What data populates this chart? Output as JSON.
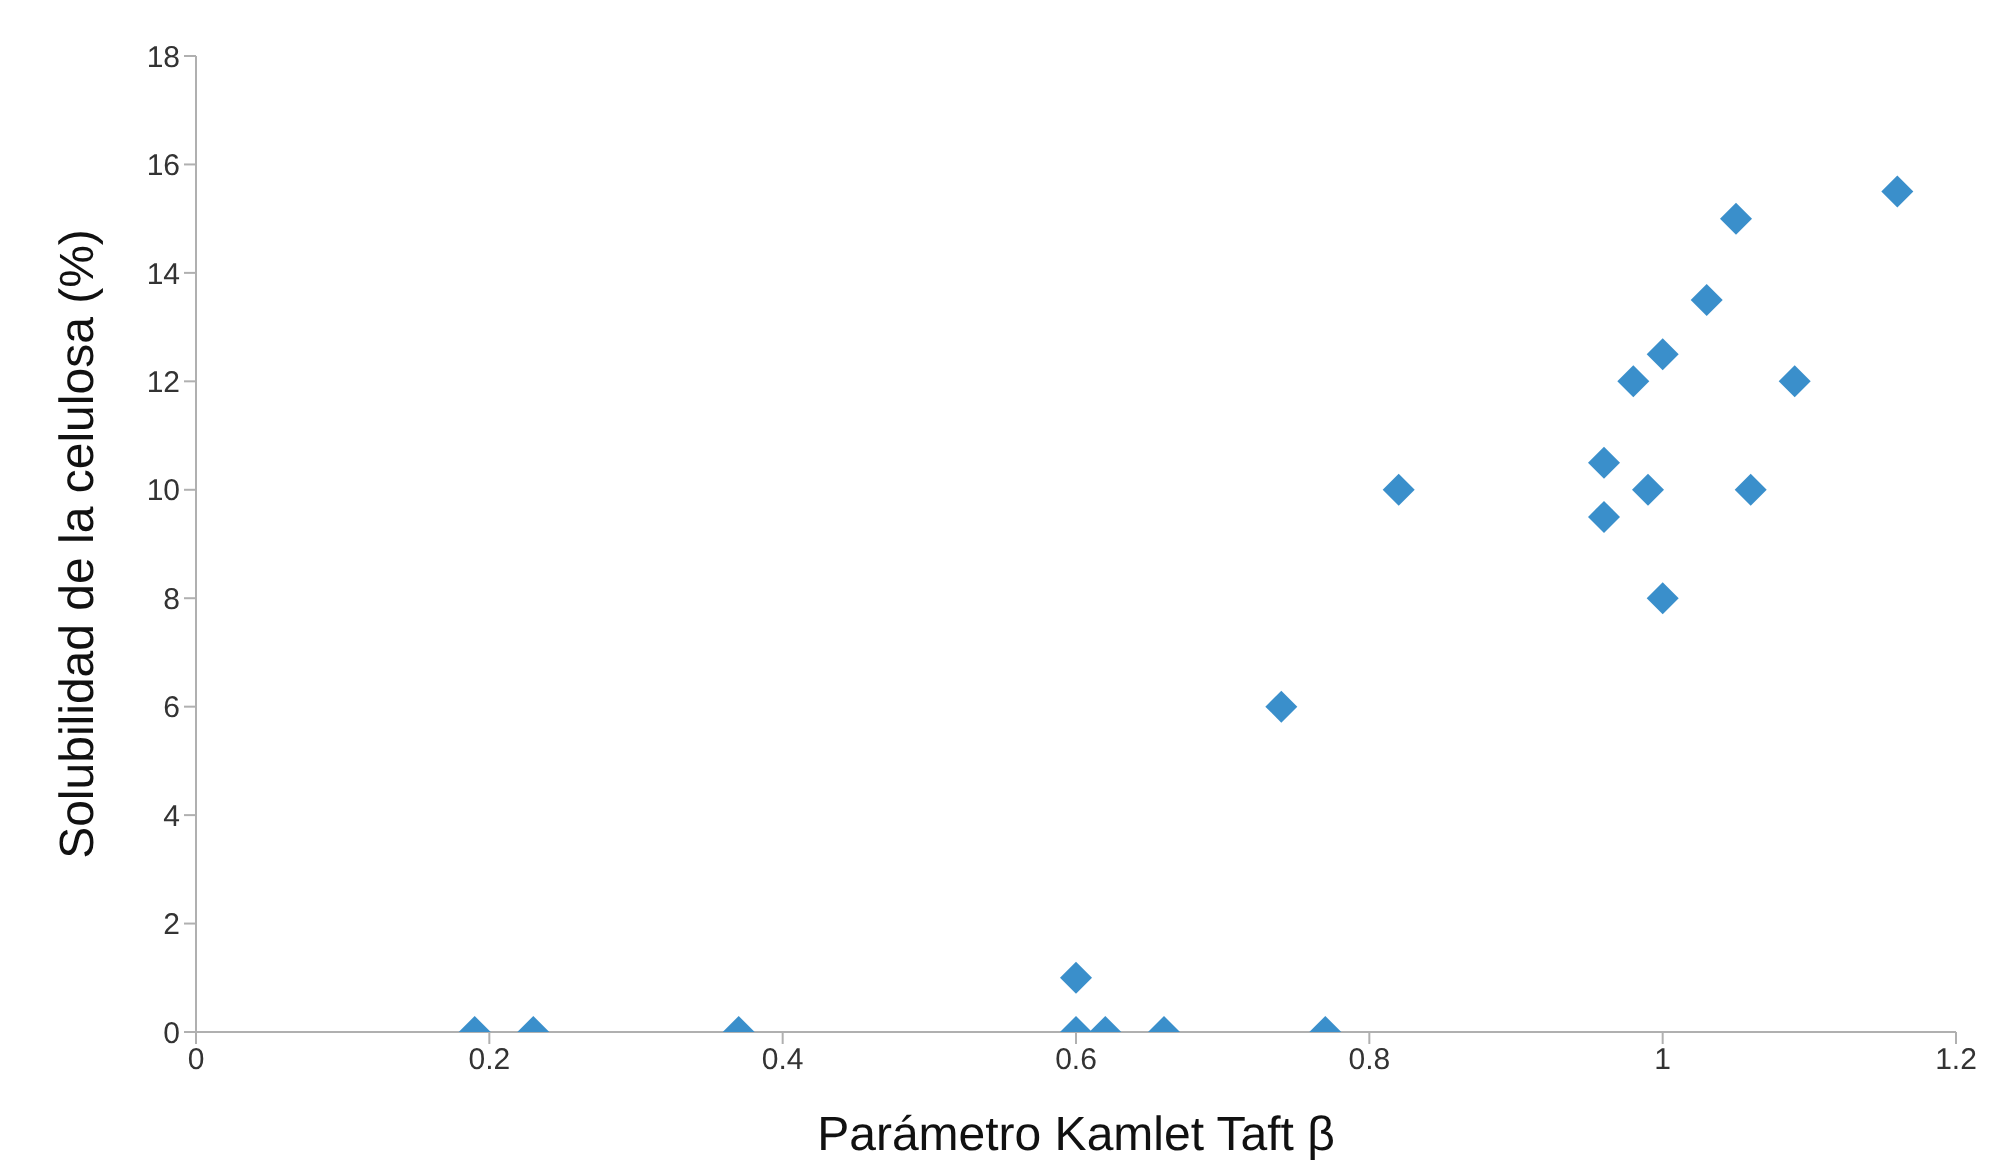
{
  "chart_data": {
    "type": "scatter",
    "xlabel": "Parámetro Kamlet Taft β",
    "ylabel": "Solubilidad de la celulosa (%)",
    "x": [
      0.19,
      0.23,
      0.37,
      0.6,
      0.6,
      0.62,
      0.66,
      0.77,
      0.74,
      0.82,
      0.96,
      0.96,
      0.98,
      0.99,
      1.0,
      1.0,
      1.03,
      1.05,
      1.06,
      1.09,
      1.16
    ],
    "values": [
      0,
      0,
      0,
      1,
      0,
      0,
      0,
      0,
      6,
      10,
      9.5,
      10.5,
      12,
      10,
      12.5,
      8,
      13.5,
      15,
      10,
      12,
      15.5
    ],
    "color": "#3a8fcb",
    "marker": "diamond",
    "xlim": [
      0,
      1.2
    ],
    "xticks": [
      0,
      0.2,
      0.4,
      0.6,
      0.8,
      1,
      1.2
    ],
    "ylim": [
      0,
      18
    ],
    "yticks": [
      0,
      2,
      4,
      6,
      8,
      10,
      12,
      14,
      16,
      18
    ],
    "grid": false,
    "legend": false
  }
}
